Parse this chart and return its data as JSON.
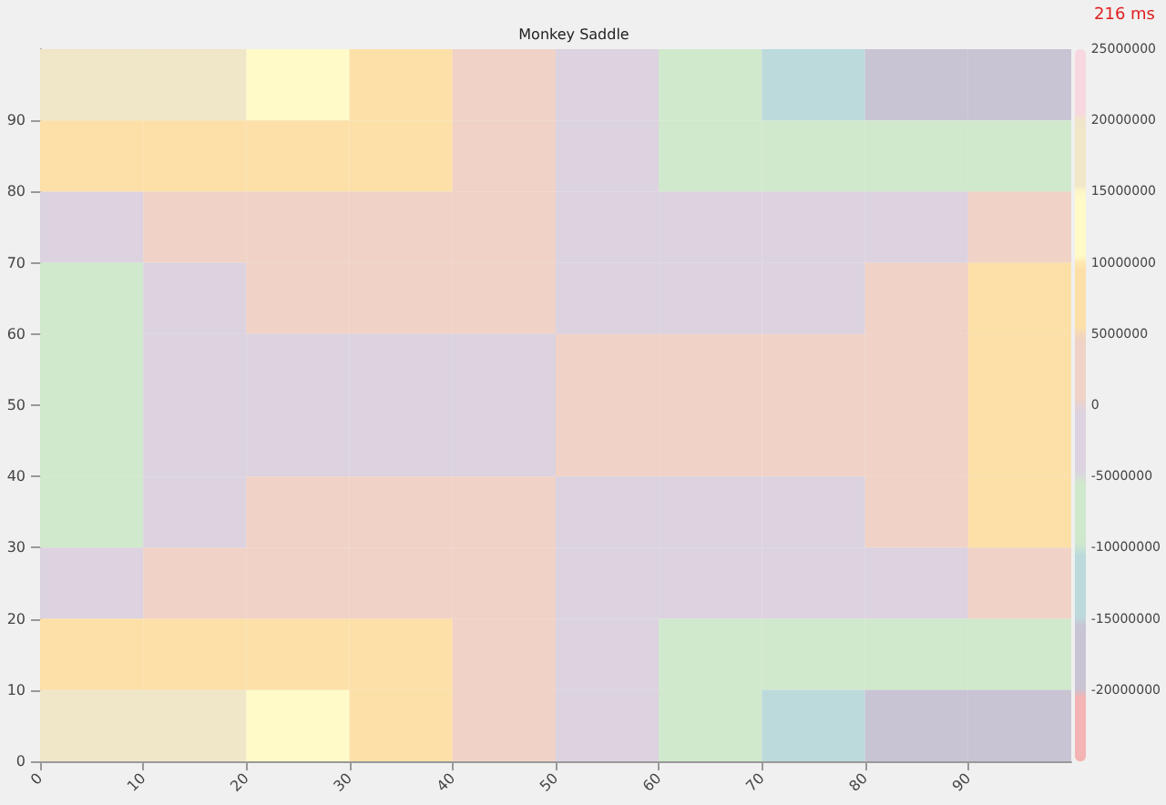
{
  "chart_data": {
    "type": "heatmap",
    "title": "Monkey Saddle",
    "annotations": [
      "216 ms"
    ],
    "x": [
      5,
      15,
      25,
      35,
      45,
      55,
      65,
      75,
      85,
      95
    ],
    "y": [
      95,
      85,
      75,
      65,
      55,
      45,
      35,
      25,
      15,
      5
    ],
    "xlim": [
      0,
      100
    ],
    "xticks": [
      0,
      10,
      20,
      30,
      40,
      50,
      60,
      70,
      80,
      90
    ],
    "ylim": [
      0,
      100
    ],
    "yticks": [
      0,
      10,
      20,
      30,
      40,
      50,
      60,
      70,
      80,
      90
    ],
    "cells": [
      [
        17500000,
        17500000,
        12500000,
        7500000,
        2500000,
        -2500000,
        -7500000,
        -12500000,
        -17500000,
        -17500000
      ],
      [
        7500000,
        7500000,
        7500000,
        7500000,
        2500000,
        -2500000,
        -7500000,
        -7500000,
        -7500000,
        -7500000
      ],
      [
        -2500000,
        2500000,
        2500000,
        2500000,
        2500000,
        -2500000,
        -2500000,
        -2500000,
        -2500000,
        2500000
      ],
      [
        -7500000,
        -2500000,
        2500000,
        2500000,
        2500000,
        -2500000,
        -2500000,
        -2500000,
        2500000,
        7500000
      ],
      [
        -7500000,
        -2500000,
        -2500000,
        -2500000,
        -2500000,
        2500000,
        2500000,
        2500000,
        2500000,
        7500000
      ],
      [
        -7500000,
        -2500000,
        -2500000,
        -2500000,
        -2500000,
        2500000,
        2500000,
        2500000,
        2500000,
        7500000
      ],
      [
        -7500000,
        -2500000,
        2500000,
        2500000,
        2500000,
        -2500000,
        -2500000,
        -2500000,
        2500000,
        7500000
      ],
      [
        -2500000,
        2500000,
        2500000,
        2500000,
        2500000,
        -2500000,
        -2500000,
        -2500000,
        -2500000,
        2500000
      ],
      [
        7500000,
        7500000,
        7500000,
        7500000,
        2500000,
        -2500000,
        -7500000,
        -7500000,
        -7500000,
        -7500000
      ],
      [
        17500000,
        17500000,
        12500000,
        7500000,
        2500000,
        -2500000,
        -7500000,
        -12500000,
        -17500000,
        -17500000
      ]
    ],
    "clim": [
      -25000000,
      25000000
    ],
    "cticks": [
      -20000000,
      -15000000,
      -10000000,
      -5000000,
      0,
      5000000,
      10000000,
      15000000,
      20000000,
      25000000
    ],
    "colors": [
      "#f4b4b4",
      "#c8c4d4",
      "#bcdadc",
      "#d0e8cc",
      "#dcd2e0",
      "#f0d2c6",
      "#fde0a8",
      "#fffac8",
      "#f0e6c8",
      "#f8d8e0"
    ]
  }
}
